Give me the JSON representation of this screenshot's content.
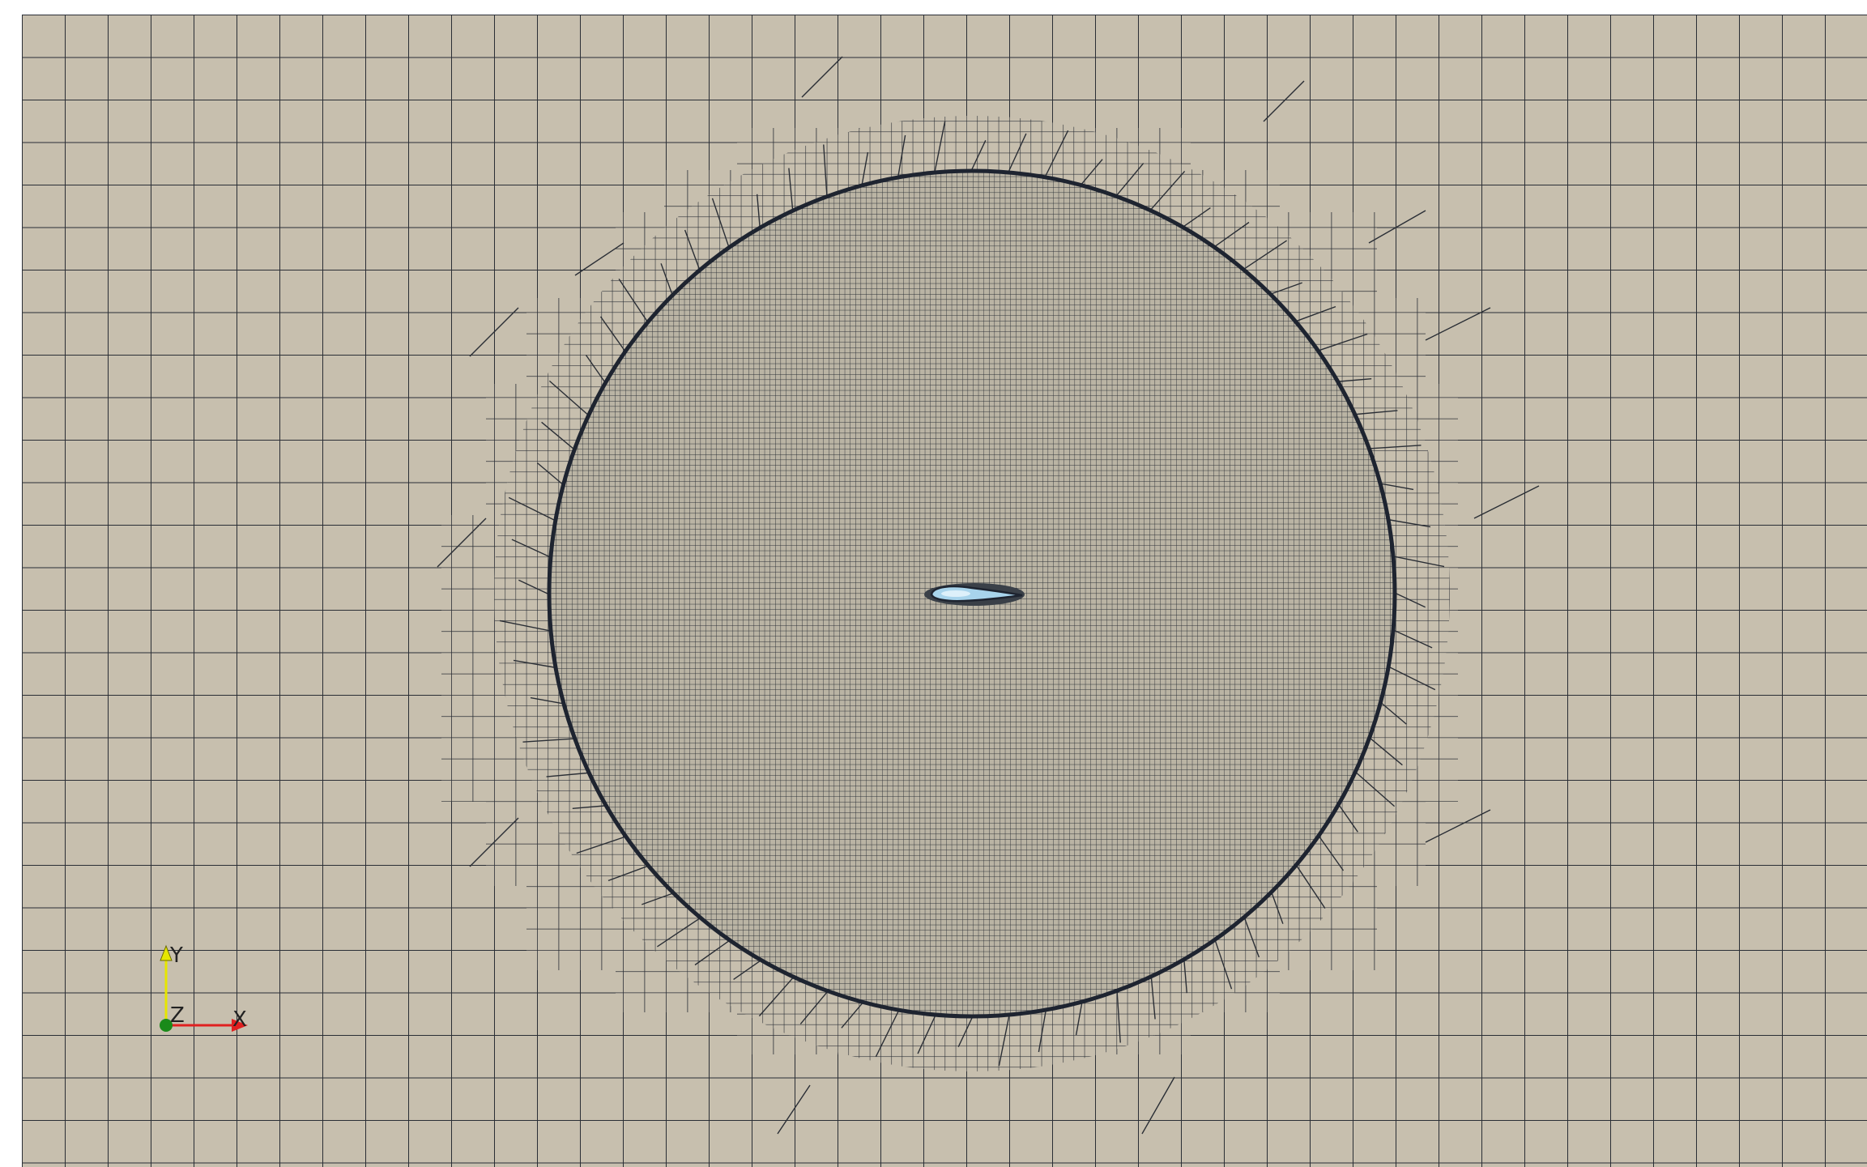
{
  "viewer": {
    "background_color": "#ffffff",
    "mesh_fill_color": "#c7bfae",
    "mesh_line_color": "#2a2e35",
    "boundary_circle_color": "#1e2430",
    "airfoil_fill_color": "#a8d4ec",
    "airfoil_highlight_color": "#ddf0fa"
  },
  "orientation_axes": {
    "y_label": "Y",
    "x_label": "X",
    "z_label": "Z",
    "y_color": "#e6e600",
    "x_color": "#e02020",
    "z_color": "#1a8a1a"
  }
}
